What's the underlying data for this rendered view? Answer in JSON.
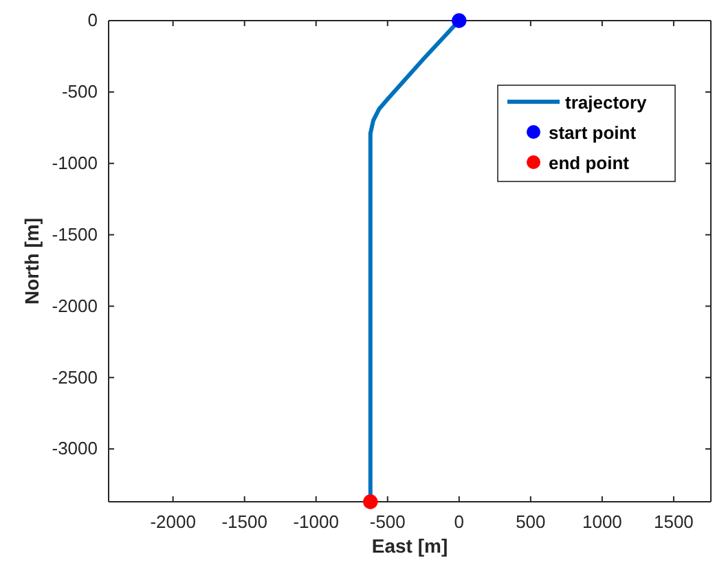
{
  "chart_data": {
    "type": "line",
    "xlabel": "East [m]",
    "ylabel": "North [m]",
    "xlim": [
      -2450,
      1760
    ],
    "ylim": [
      -3370,
      0
    ],
    "xticks": [
      -2000,
      -1500,
      -1000,
      -500,
      0,
      500,
      1000,
      1500
    ],
    "yticks": [
      -3000,
      -2500,
      -2000,
      -1500,
      -1000,
      -500,
      0
    ],
    "grid": false,
    "legend": "top right",
    "series": [
      {
        "name": "trajectory",
        "color": "#0072bd",
        "marker": "none",
        "line_style": "solid",
        "x": [
          0,
          -250,
          -500,
          -560,
          -600,
          -620,
          -620,
          -620
        ],
        "values": [
          0,
          -270,
          -550,
          -620,
          -700,
          -790,
          -900,
          -3370
        ]
      },
      {
        "name": "start point",
        "type": "scatter",
        "color": "#0000ff",
        "marker": "circle",
        "x": [
          0
        ],
        "values": [
          0
        ]
      },
      {
        "name": "end point",
        "type": "scatter",
        "color": "#ff0000",
        "marker": "circle",
        "x": [
          -620
        ],
        "values": [
          -3370
        ]
      }
    ]
  }
}
